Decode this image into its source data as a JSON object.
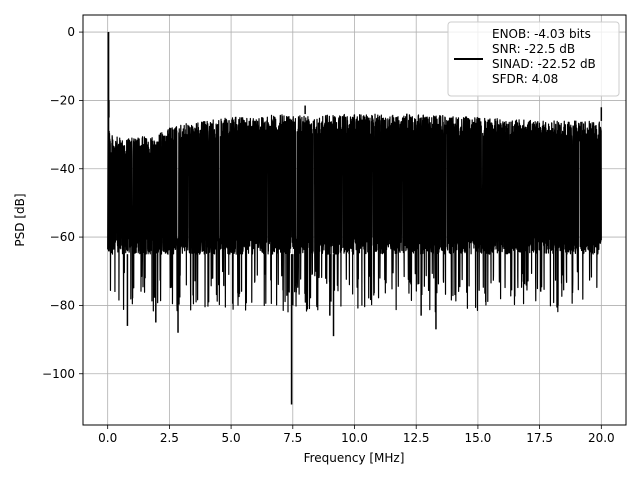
{
  "chart_data": {
    "type": "line",
    "title": "",
    "xlabel": "Frequency [MHz]",
    "ylabel": "PSD [dB]",
    "xlim": [
      -1.0,
      21.0
    ],
    "ylim": [
      -115,
      5
    ],
    "xticks": [
      0.0,
      2.5,
      5.0,
      7.5,
      10.0,
      12.5,
      15.0,
      17.5,
      20.0
    ],
    "xtick_labels": [
      "0.0",
      "2.5",
      "5.0",
      "7.5",
      "10.0",
      "12.5",
      "15.0",
      "17.5",
      "20.0"
    ],
    "yticks": [
      0,
      -20,
      -40,
      -60,
      -80,
      -100
    ],
    "ytick_labels": [
      "0",
      "−20",
      "−40",
      "−60",
      "−80",
      "−100"
    ],
    "grid": true,
    "legend_placement": "top-right",
    "legend_lines": [
      "ENOB: -4.03 bits",
      "SNR: -22.5 dB",
      "SINAD: -22.52 dB",
      "SFDR: 4.08"
    ],
    "series": [
      {
        "color": "#000000",
        "style": "dense noise spectrum",
        "peak": {
          "x": 0.03,
          "y": 0
        },
        "x_range": [
          0.0,
          20.0
        ],
        "upper_envelope": [
          [
            0.0,
            -20
          ],
          [
            0.1,
            -30
          ],
          [
            0.5,
            -31
          ],
          [
            1.0,
            -31
          ],
          [
            2.0,
            -30
          ],
          [
            2.5,
            -28
          ],
          [
            3.0,
            -27
          ],
          [
            4.0,
            -26
          ],
          [
            5.0,
            -25
          ],
          [
            7.5,
            -24
          ],
          [
            10.0,
            -24
          ],
          [
            12.5,
            -24
          ],
          [
            15.0,
            -25
          ],
          [
            17.5,
            -26
          ],
          [
            20.0,
            -26
          ]
        ],
        "lower_bulk_floor": -65,
        "notable_points": [
          {
            "x": 0.05,
            "y": -20
          },
          {
            "x": 7.45,
            "y": -109
          },
          {
            "x": 7.5,
            "y": -80
          },
          {
            "x": 0.8,
            "y": -86
          },
          {
            "x": 1.95,
            "y": -85
          },
          {
            "x": 2.85,
            "y": -88
          },
          {
            "x": 9.15,
            "y": -89
          },
          {
            "x": 13.3,
            "y": -87
          },
          {
            "x": 12.7,
            "y": -83
          },
          {
            "x": 9.0,
            "y": -83
          },
          {
            "x": 20.0,
            "y": -22
          },
          {
            "x": 8.0,
            "y": -21.5
          }
        ]
      }
    ]
  }
}
